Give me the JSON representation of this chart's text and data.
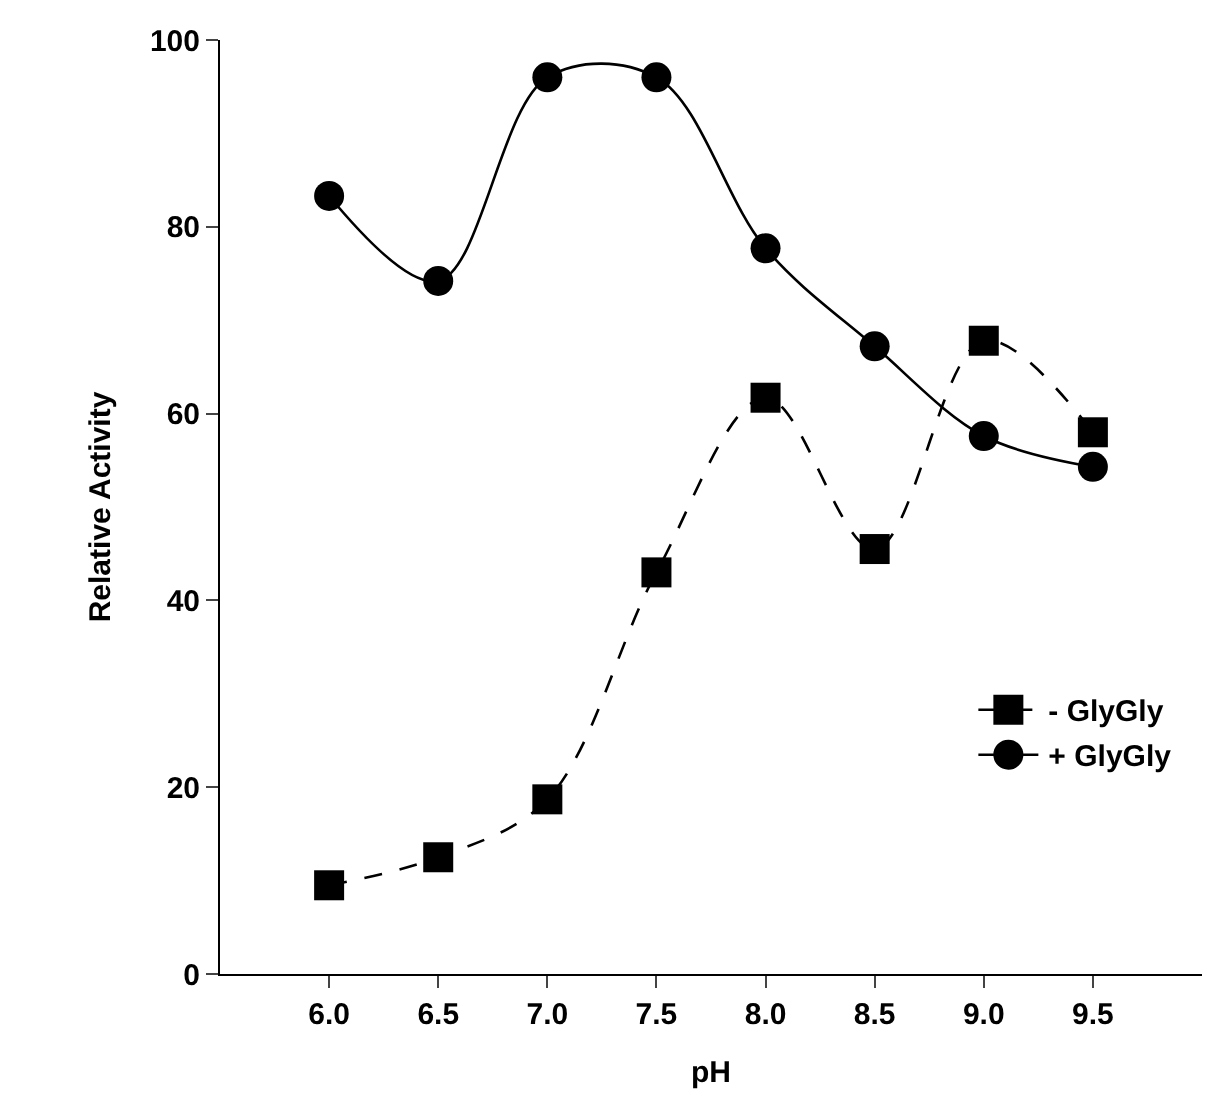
{
  "chart_data": {
    "type": "line",
    "xlabel": "pH",
    "ylabel": "Relative Activity",
    "x": [
      6.0,
      6.5,
      7.0,
      7.5,
      8.0,
      8.5,
      9.0,
      9.5
    ],
    "series": [
      {
        "name": "- GlyGly",
        "color": "#000000",
        "marker": "square",
        "line_style": "dashed",
        "values": [
          9.5,
          12.5,
          18.7,
          43,
          61.7,
          45.5,
          67.8,
          58
        ]
      },
      {
        "name": "+ GlyGly",
        "color": "#000000",
        "marker": "circle",
        "line_style": "solid",
        "values": [
          83.3,
          74.2,
          96,
          96,
          77.7,
          67.2,
          57.6,
          54.3
        ]
      }
    ],
    "xlim": [
      5.5,
      10.0
    ],
    "xticks": [
      {
        "value": 6,
        "label": "6.0"
      },
      6.5,
      {
        "value": 7,
        "label": "7.0"
      },
      7.5,
      {
        "value": 8,
        "label": "8.0"
      },
      8.5,
      {
        "value": 9,
        "label": "9.0"
      },
      9.5
    ],
    "ylim": [
      0,
      100
    ],
    "yticks": [
      0,
      20,
      40,
      60,
      80,
      100
    ],
    "legend": "bottom right"
  }
}
